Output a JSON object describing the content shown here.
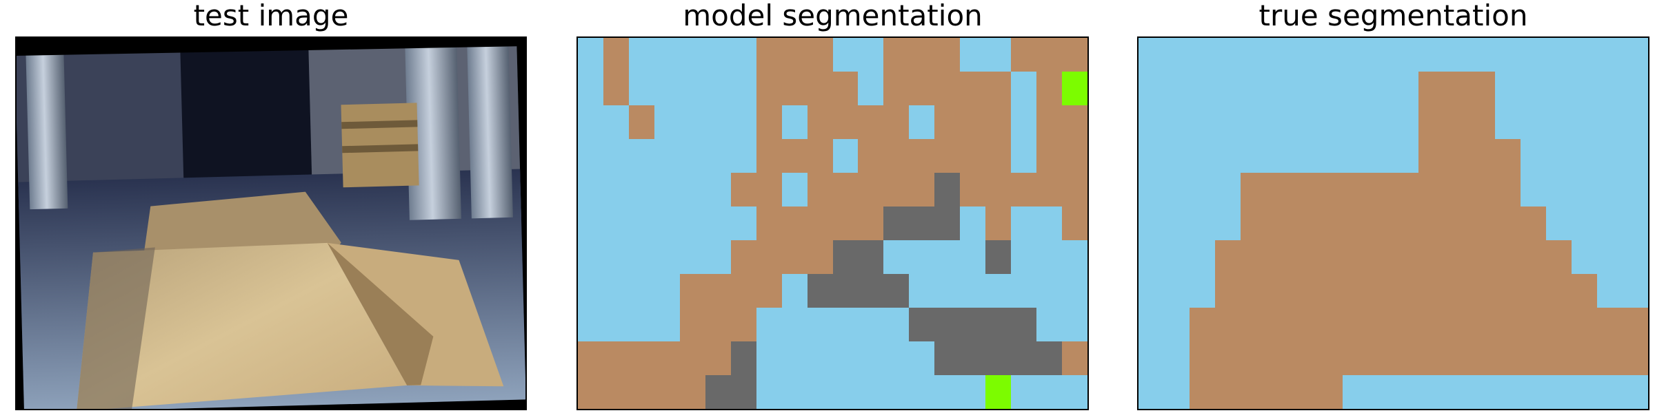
{
  "panels": {
    "test": {
      "title": "test image"
    },
    "model": {
      "title": "model segmentation"
    },
    "truth": {
      "title": "true segmentation"
    }
  },
  "segmentation_colors": {
    "S": "#87CEEB",
    "B": "#BA8A62",
    "G": "#696969",
    "L": "#7CFC00"
  },
  "model_segmentation_grid": [
    "SBSSSSSBBBSSBBBSSBBB",
    "SBSSSSSBBBBSBBBBBSBL",
    "SSBSSSSBSBBBBSBBBSBB",
    "SSSSSSSBBBSBBBBBBSBB",
    "SSSSSSBBSBBBBBGBBBBB",
    "SSSSSSSBBBBBGGGSBSSB",
    "SSSSSSBBBBGGSSSSGSSS",
    "SSSSBBBBSGGGGSSSSSSS",
    "SSSSBBBSSSSSSGGGGGSS",
    "BBBBBBGSSSSSSSGGGGGB",
    "BBBBBGGSSSSSSSSSLSSS"
  ],
  "true_segmentation_grid": [
    "SSSSSSSSSSSSSSSSSSSS",
    "SSSSSSSSSSSBBBSSSSSS",
    "SSSSSSSSSSSBBBSSSSSS",
    "SSSSSSSSSSSBBBBSSSSS",
    "SSSSBBBBBBBBBBBSSSSS",
    "SSSSBBBBBBBBBBBBSSSS",
    "SSSBBBBBBBBBBBBBBSSS",
    "SSSBBBBBBBBBBBBBBBSS",
    "SSBBBBBBBBBBBBBBBBBB",
    "SSBBBBBBBBBBBBBBBBBB",
    "SSBBBBBBSSSSSSSSSSSS"
  ]
}
